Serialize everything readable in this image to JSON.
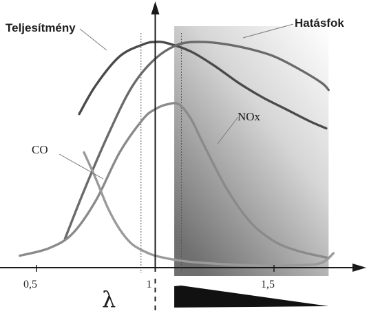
{
  "chart_data": {
    "type": "line",
    "title": "",
    "xlabel": "λ",
    "ylabel": "",
    "x_ticks": [
      "0,5",
      "1",
      "1,5"
    ],
    "x_tick_values": [
      0.5,
      1.0,
      1.5
    ],
    "xlim": [
      0.38,
      1.95
    ],
    "ylim": [
      0,
      100
    ],
    "grid": false,
    "legend": "none",
    "series": [
      {
        "name": "Teljesítmény",
        "color": "#4a4a4a",
        "x": [
          0.68,
          0.75,
          0.85,
          0.95,
          1.0,
          1.05,
          1.15,
          1.25,
          1.35,
          1.45,
          1.55,
          1.65,
          1.72
        ],
        "y": [
          64,
          76,
          88,
          93,
          94,
          93.5,
          90,
          84,
          77,
          71,
          66,
          61,
          58
        ]
      },
      {
        "name": "Hatásfok",
        "color": "#6a6a6a",
        "x": [
          0.62,
          0.7,
          0.8,
          0.9,
          1.0,
          1.1,
          1.2,
          1.3,
          1.4,
          1.5,
          1.6,
          1.7,
          1.73
        ],
        "y": [
          12,
          32,
          55,
          75,
          87,
          93,
          94,
          93,
          91,
          88,
          83,
          77,
          74
        ]
      },
      {
        "name": "NOx",
        "color": "#8a8a8a",
        "x": [
          0.43,
          0.55,
          0.65,
          0.75,
          0.85,
          0.95,
          1.0,
          1.05,
          1.1,
          1.15,
          1.2,
          1.3,
          1.4,
          1.5,
          1.6,
          1.73
        ],
        "y": [
          5,
          8,
          14,
          28,
          48,
          62,
          66,
          68,
          68,
          62,
          52,
          33,
          19,
          11,
          7,
          4
        ]
      },
      {
        "name": "CO",
        "color": "#9a9a9a",
        "x": [
          0.7,
          0.75,
          0.8,
          0.85,
          0.9,
          0.95,
          1.0,
          1.1,
          1.2,
          1.4,
          1.6,
          1.7,
          1.75
        ],
        "y": [
          48,
          37,
          25,
          16,
          10,
          7,
          5,
          3,
          2,
          1,
          1,
          2,
          6
        ]
      }
    ],
    "annotations": [
      {
        "type": "shaded-region",
        "x_range": [
          1.08,
          1.73
        ],
        "description": "gradient shading"
      },
      {
        "type": "dotted-vertical",
        "x": 0.94
      },
      {
        "type": "dotted-vertical",
        "x": 1.11
      },
      {
        "type": "wedge",
        "x_range": [
          1.08,
          1.73
        ],
        "description": "black wedge below axis"
      }
    ],
    "colors": {
      "axis": "#1a1a1a",
      "wedge": "#111111",
      "shade_light": "#ffffff",
      "shade_dark": "#6f6f6f"
    }
  }
}
